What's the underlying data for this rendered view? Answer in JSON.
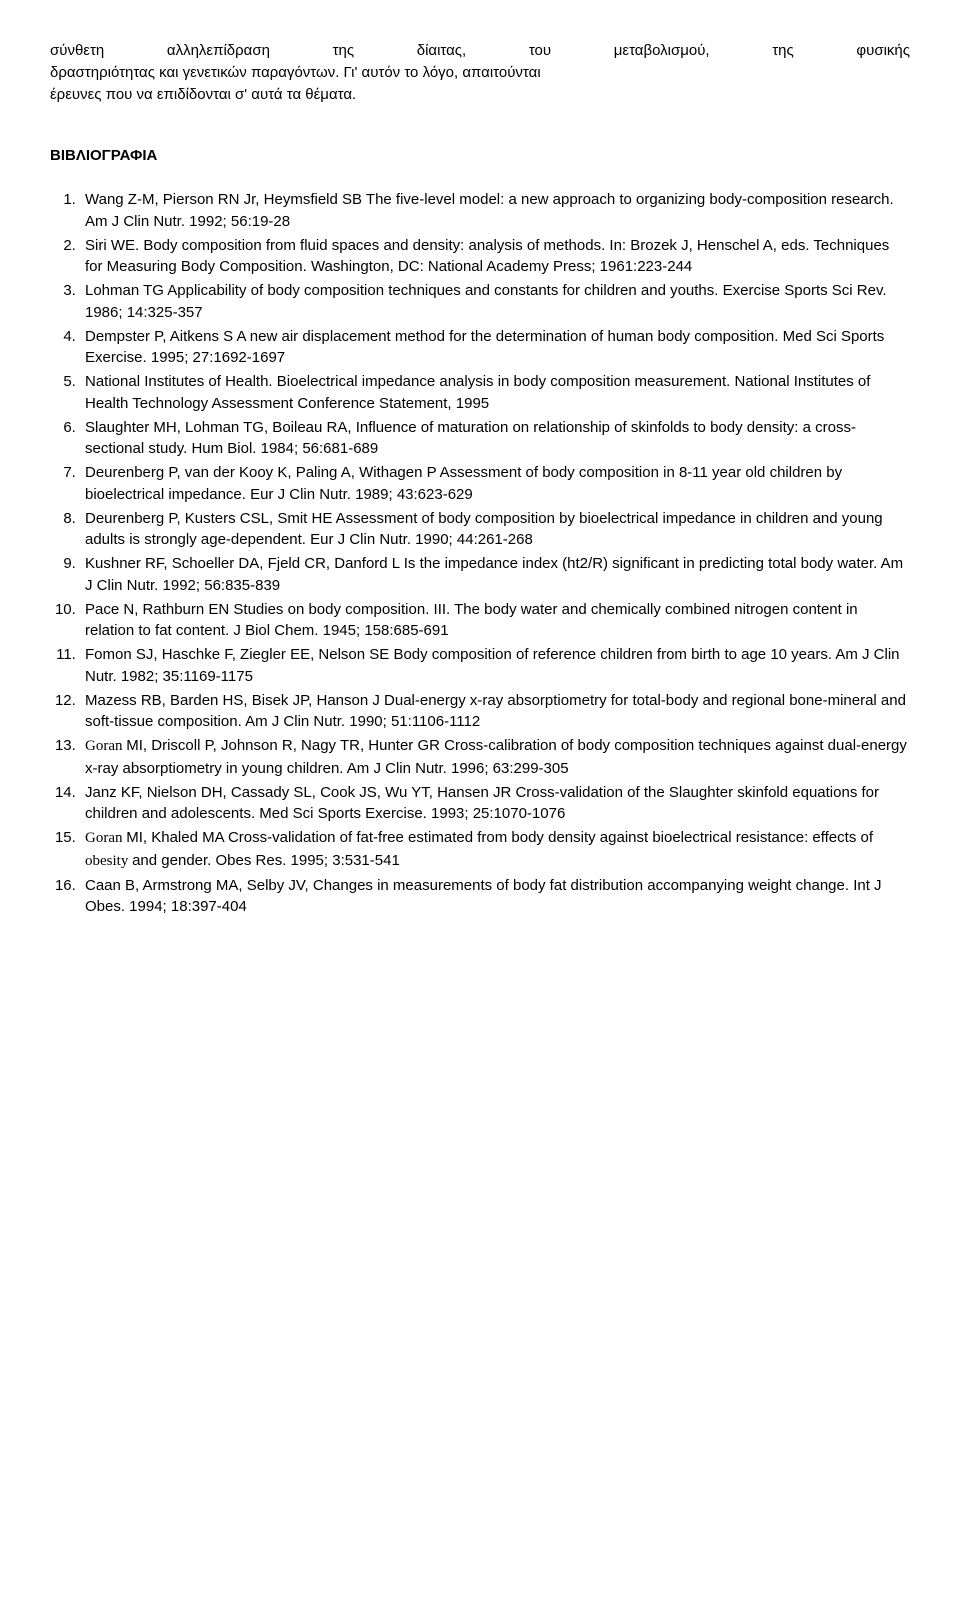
{
  "intro": {
    "line1_words": [
      "σύνθετη",
      "αλληλεπίδραση",
      "της",
      "δίαιτας,",
      "του",
      "μεταβολισμού,",
      "της",
      "φυσικής"
    ],
    "line2": "δραστηριότητας και γενετικών παραγόντων. Γι' αυτόν το λόγο, απαιτούνται",
    "line3": "έρευνες που να επιδίδονται σ' αυτά τα θέματα."
  },
  "section_title": "ΒΙΒΛΙΟΓΡΑΦΙΑ",
  "refs": [
    "Wang Z-M, Pierson RN Jr, Heymsfield SB The five-level model: a new approach to organizing body-composition research. Am J Clin Nutr. 1992; 56:19-28",
    "Siri WE. Body composition from fluid spaces and density: analysis of methods. In: Brozek J, Henschel A, eds. Techniques for Measuring Body Composition. Washington, DC: National Academy Press; 1961:223-244",
    "Lohman TG Applicability of body composition techniques and constants for children and youths. Exercise Sports Sci Rev. 1986; 14:325-357",
    "Dempster P, Aitkens S A new air displacement method for the determination of human body composition. Med Sci Sports Exercise. 1995; 27:1692-1697",
    "National Institutes of Health. Bioelectrical impedance analysis in body composition measurement. National Institutes of Health Technology Assessment Conference Statement, 1995",
    "Slaughter MH, Lohman TG, Boileau RA, Influence of maturation on relationship of skinfolds to body density: a cross-sectional study. Hum Biol. 1984; 56:681-689",
    "Deurenberg P, van der Kooy K, Paling A, Withagen P Assessment of body composition in 8-11 year old children by bioelectrical impedance. Eur J Clin Nutr. 1989; 43:623-629",
    "Deurenberg P, Kusters CSL, Smit HE Assessment of body composition by bioelectrical impedance in children and young adults is strongly age-dependent. Eur J Clin Nutr. 1990; 44:261-268",
    "Kushner RF, Schoeller DA, Fjeld CR, Danford L Is the impedance index (ht2/R) significant in predicting total body water. Am J Clin Nutr. 1992; 56:835-839",
    "Pace N, Rathburn EN Studies on body composition. III. The body water and chemically combined nitrogen content in relation to fat content. J Biol Chem. 1945; 158:685-691",
    "Fomon SJ, Haschke F, Ziegler EE, Nelson SE Body composition of reference children from birth to age 10 years. Am J Clin Nutr. 1982; 35:1169-1175",
    "Mazess RB, Barden HS, Bisek JP, Hanson J Dual-energy x-ray absorptiometry for total-body and regional bone-mineral and soft-tissue composition. Am J Clin Nutr. 1990; 51:1106-1112",
    "MI, Driscoll P, Johnson R, Nagy TR, Hunter GR Cross-calibration of body composition techniques against dual-energy x-ray absorptiometry in young children. Am J Clin Nutr. 1996; 63:299-305",
    "Janz KF, Nielson DH, Cassady SL, Cook JS, Wu YT, Hansen JR Cross-validation of the Slaughter skinfold equations for children and adolescents. Med Sci Sports Exercise. 1993; 25:1070-1076",
    "MI, Khaled MA Cross-validation of fat-free estimated from body density against bioelectrical resistance: effects of",
    "Caan B, Armstrong MA, Selby JV, Changes in measurements of body fat distribution accompanying weight change. Int J Obes. 1994; 18:397-404"
  ],
  "ref13_prefix": "Goran ",
  "ref15_prefix": "Goran ",
  "ref15_mid": " obesity ",
  "ref15_suffix": "and gender. Obes Res. 1995; 3:531-541"
}
